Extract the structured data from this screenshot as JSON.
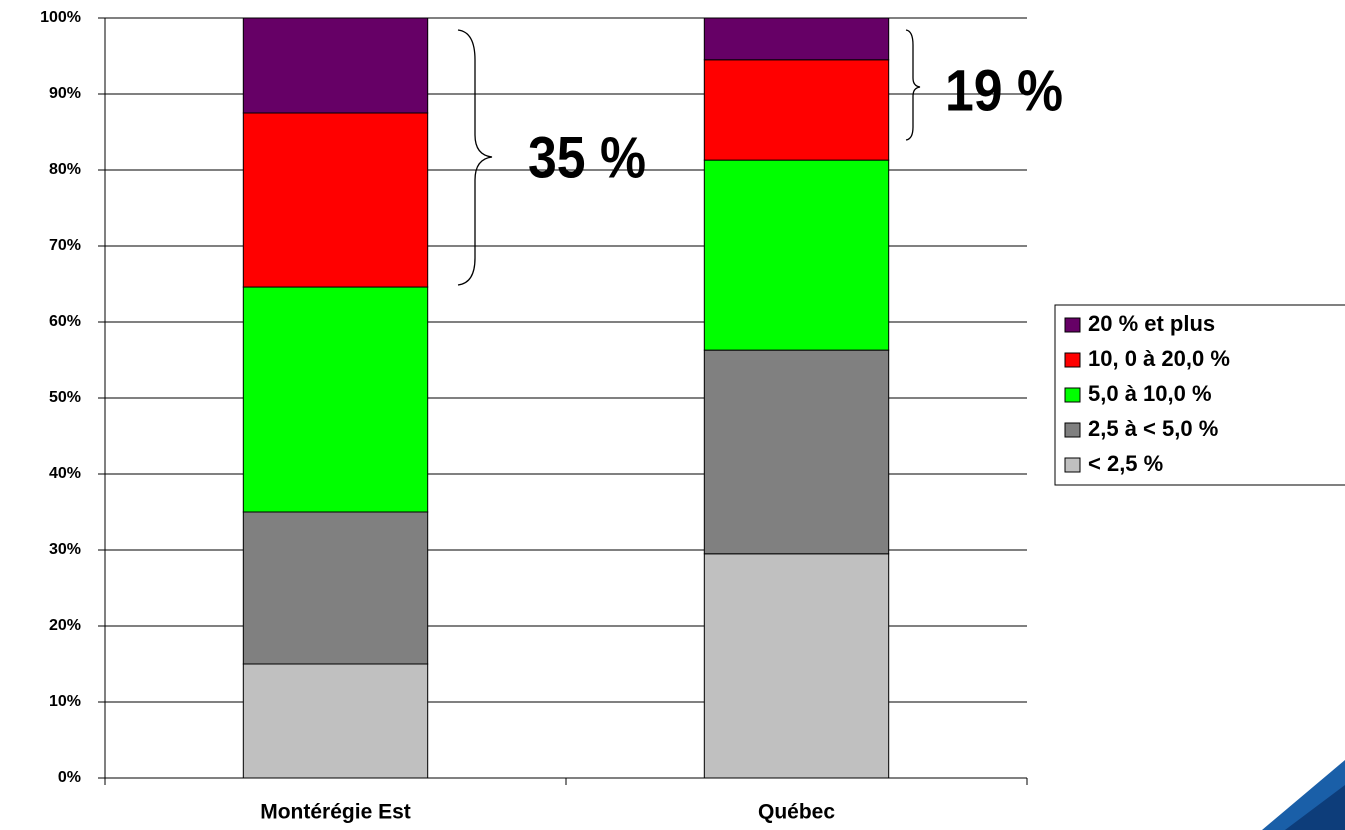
{
  "chart_data": {
    "type": "stacked_bar",
    "categories": [
      "Montérégie Est",
      "Québec"
    ],
    "series": [
      {
        "name": "< 2,5 %",
        "color": "#c0c0c0",
        "values": [
          15.0,
          29.5
        ]
      },
      {
        "name": "2,5 à < 5,0 %",
        "color": "#808080",
        "values": [
          20.0,
          26.8
        ]
      },
      {
        "name": "5,0 à 10,0 %",
        "color": "#00ff00",
        "values": [
          29.6,
          25.0
        ]
      },
      {
        "name": "10, 0 à 20,0 %",
        "color": "#ff0000",
        "values": [
          22.9,
          13.2
        ]
      },
      {
        "name": "20 % et plus",
        "color": "#660066",
        "values": [
          12.5,
          5.5
        ]
      }
    ],
    "ylim": [
      0,
      100
    ],
    "yticks": [
      {
        "value": 0,
        "label": "0%"
      },
      {
        "value": 10,
        "label": "10%"
      },
      {
        "value": 20,
        "label": "20%"
      },
      {
        "value": 30,
        "label": "30%"
      },
      {
        "value": 40,
        "label": "40%"
      },
      {
        "value": 50,
        "label": "50%"
      },
      {
        "value": 60,
        "label": "60%"
      },
      {
        "value": 70,
        "label": "70%"
      },
      {
        "value": 80,
        "label": "80%"
      },
      {
        "value": 90,
        "label": "90%"
      },
      {
        "value": 100,
        "label": "100%"
      }
    ],
    "grid": true,
    "legend": "right",
    "annotations": [
      "35 %",
      "19 %"
    ]
  }
}
